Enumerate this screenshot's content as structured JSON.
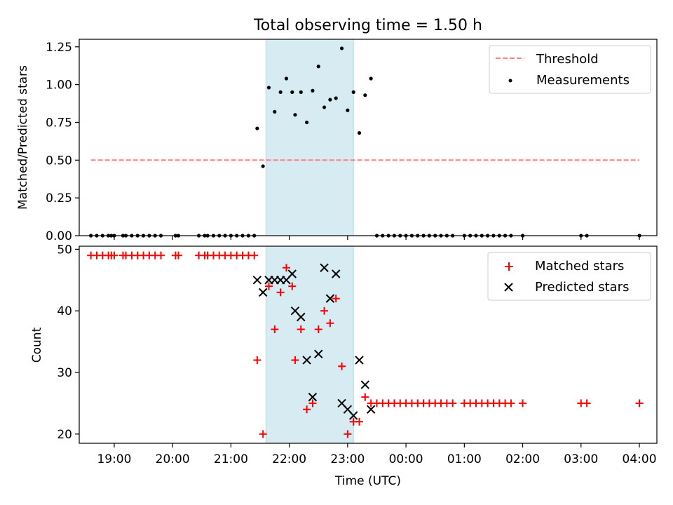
{
  "chart_data": [
    {
      "type": "scatter",
      "title": "Total observing time = 1.50 h",
      "xlabel": "",
      "ylabel": "Matched/Predicted stars",
      "ylim": [
        0,
        1.3
      ],
      "yticks": [
        0.0,
        0.25,
        0.5,
        0.75,
        1.0,
        1.25
      ],
      "ytick_labels": [
        "0.00",
        "0.25",
        "0.50",
        "0.75",
        "1.00",
        "1.25"
      ],
      "grid": false,
      "legend_position": "upper-right",
      "highlight_span": {
        "start": "21:36",
        "end": "23:06",
        "color": "#add8e6"
      },
      "series": [
        {
          "name": "Threshold",
          "kind": "dashed-line",
          "color": "#ff7f7f",
          "points": [
            [
              "18:36",
              0.5
            ],
            [
              "04:00",
              0.5
            ]
          ]
        },
        {
          "name": "Measurements",
          "kind": "dot",
          "color": "#000000",
          "points": [
            [
              "18:36",
              0
            ],
            [
              "18:42",
              0
            ],
            [
              "18:48",
              0
            ],
            [
              "18:54",
              0
            ],
            [
              "18:57",
              0
            ],
            [
              "19:00",
              0
            ],
            [
              "19:09",
              0
            ],
            [
              "19:12",
              0
            ],
            [
              "19:18",
              0
            ],
            [
              "19:24",
              0
            ],
            [
              "19:30",
              0
            ],
            [
              "19:36",
              0
            ],
            [
              "19:42",
              0
            ],
            [
              "19:48",
              0
            ],
            [
              "20:03",
              0
            ],
            [
              "20:06",
              0
            ],
            [
              "20:27",
              0
            ],
            [
              "20:33",
              0
            ],
            [
              "20:36",
              0
            ],
            [
              "20:42",
              0
            ],
            [
              "20:48",
              0
            ],
            [
              "20:54",
              0
            ],
            [
              "21:00",
              0
            ],
            [
              "21:06",
              0
            ],
            [
              "21:12",
              0
            ],
            [
              "21:18",
              0
            ],
            [
              "21:24",
              0
            ],
            [
              "21:27",
              0.71
            ],
            [
              "21:33",
              0.46
            ],
            [
              "21:39",
              0.98
            ],
            [
              "21:45",
              0.82
            ],
            [
              "21:51",
              0.95
            ],
            [
              "21:57",
              1.04
            ],
            [
              "22:03",
              0.95
            ],
            [
              "22:06",
              0.8
            ],
            [
              "22:12",
              0.95
            ],
            [
              "22:18",
              0.75
            ],
            [
              "22:24",
              0.96
            ],
            [
              "22:30",
              1.12
            ],
            [
              "22:36",
              0.85
            ],
            [
              "22:42",
              0.9
            ],
            [
              "22:48",
              0.91
            ],
            [
              "22:54",
              1.24
            ],
            [
              "23:00",
              0.83
            ],
            [
              "23:06",
              0.95
            ],
            [
              "23:12",
              0.68
            ],
            [
              "23:18",
              0.93
            ],
            [
              "23:24",
              1.04
            ],
            [
              "23:30",
              0
            ],
            [
              "23:36",
              0
            ],
            [
              "23:42",
              0
            ],
            [
              "23:48",
              0
            ],
            [
              "23:54",
              0
            ],
            [
              "00:00",
              0
            ],
            [
              "00:06",
              0
            ],
            [
              "00:12",
              0
            ],
            [
              "00:18",
              0
            ],
            [
              "00:24",
              0
            ],
            [
              "00:30",
              0
            ],
            [
              "00:36",
              0
            ],
            [
              "00:42",
              0
            ],
            [
              "00:48",
              0
            ],
            [
              "01:00",
              0
            ],
            [
              "01:06",
              0
            ],
            [
              "01:12",
              0
            ],
            [
              "01:18",
              0
            ],
            [
              "01:24",
              0
            ],
            [
              "01:30",
              0
            ],
            [
              "01:36",
              0
            ],
            [
              "01:42",
              0
            ],
            [
              "01:48",
              0
            ],
            [
              "02:00",
              0
            ],
            [
              "03:00",
              0
            ],
            [
              "03:06",
              0
            ],
            [
              "04:00",
              0
            ]
          ]
        }
      ]
    },
    {
      "type": "scatter",
      "title": "",
      "xlabel": "Time (UTC)",
      "ylabel": "Count",
      "ylim": [
        18.5,
        50.5
      ],
      "yticks": [
        20,
        30,
        40,
        50
      ],
      "ytick_labels": [
        "20",
        "30",
        "40",
        "50"
      ],
      "xticks": [
        "19:00",
        "20:00",
        "21:00",
        "22:00",
        "23:00",
        "00:00",
        "01:00",
        "02:00",
        "03:00",
        "04:00"
      ],
      "xlim": [
        "18:24",
        "04:18"
      ],
      "grid": false,
      "legend_position": "upper-right",
      "highlight_span": {
        "start": "21:36",
        "end": "23:06",
        "color": "#add8e6"
      },
      "series": [
        {
          "name": "Matched stars",
          "kind": "plus",
          "color": "#ff0000",
          "points": [
            [
              "18:36",
              49
            ],
            [
              "18:42",
              49
            ],
            [
              "18:48",
              49
            ],
            [
              "18:54",
              49
            ],
            [
              "18:57",
              49
            ],
            [
              "19:00",
              49
            ],
            [
              "19:09",
              49
            ],
            [
              "19:12",
              49
            ],
            [
              "19:18",
              49
            ],
            [
              "19:24",
              49
            ],
            [
              "19:30",
              49
            ],
            [
              "19:36",
              49
            ],
            [
              "19:42",
              49
            ],
            [
              "19:48",
              49
            ],
            [
              "20:03",
              49
            ],
            [
              "20:06",
              49
            ],
            [
              "20:27",
              49
            ],
            [
              "20:33",
              49
            ],
            [
              "20:36",
              49
            ],
            [
              "20:42",
              49
            ],
            [
              "20:48",
              49
            ],
            [
              "20:54",
              49
            ],
            [
              "21:00",
              49
            ],
            [
              "21:06",
              49
            ],
            [
              "21:12",
              49
            ],
            [
              "21:18",
              49
            ],
            [
              "21:24",
              49
            ],
            [
              "21:27",
              32
            ],
            [
              "21:33",
              20
            ],
            [
              "21:39",
              44
            ],
            [
              "21:45",
              37
            ],
            [
              "21:51",
              43
            ],
            [
              "21:57",
              47
            ],
            [
              "22:03",
              44
            ],
            [
              "22:06",
              32
            ],
            [
              "22:12",
              37
            ],
            [
              "22:18",
              24
            ],
            [
              "22:24",
              25
            ],
            [
              "22:30",
              37
            ],
            [
              "22:36",
              40
            ],
            [
              "22:42",
              38
            ],
            [
              "22:48",
              42
            ],
            [
              "22:54",
              31
            ],
            [
              "23:00",
              20
            ],
            [
              "23:06",
              22
            ],
            [
              "23:12",
              22
            ],
            [
              "23:18",
              26
            ],
            [
              "23:24",
              25
            ],
            [
              "23:30",
              25
            ],
            [
              "23:36",
              25
            ],
            [
              "23:42",
              25
            ],
            [
              "23:48",
              25
            ],
            [
              "23:54",
              25
            ],
            [
              "00:00",
              25
            ],
            [
              "00:06",
              25
            ],
            [
              "00:12",
              25
            ],
            [
              "00:18",
              25
            ],
            [
              "00:24",
              25
            ],
            [
              "00:30",
              25
            ],
            [
              "00:36",
              25
            ],
            [
              "00:42",
              25
            ],
            [
              "00:48",
              25
            ],
            [
              "01:00",
              25
            ],
            [
              "01:06",
              25
            ],
            [
              "01:12",
              25
            ],
            [
              "01:18",
              25
            ],
            [
              "01:24",
              25
            ],
            [
              "01:30",
              25
            ],
            [
              "01:36",
              25
            ],
            [
              "01:42",
              25
            ],
            [
              "01:48",
              25
            ],
            [
              "02:00",
              25
            ],
            [
              "03:00",
              25
            ],
            [
              "03:06",
              25
            ],
            [
              "04:00",
              25
            ]
          ]
        },
        {
          "name": "Predicted stars",
          "kind": "cross",
          "color": "#000000",
          "points": [
            [
              "21:27",
              45
            ],
            [
              "21:33",
              43
            ],
            [
              "21:39",
              45
            ],
            [
              "21:45",
              45
            ],
            [
              "21:51",
              45
            ],
            [
              "21:57",
              45
            ],
            [
              "22:03",
              46
            ],
            [
              "22:06",
              40
            ],
            [
              "22:12",
              39
            ],
            [
              "22:18",
              32
            ],
            [
              "22:24",
              26
            ],
            [
              "22:30",
              33
            ],
            [
              "22:36",
              47
            ],
            [
              "22:42",
              42
            ],
            [
              "22:48",
              46
            ],
            [
              "22:54",
              25
            ],
            [
              "23:00",
              24
            ],
            [
              "23:06",
              23
            ],
            [
              "23:12",
              32
            ],
            [
              "23:18",
              28
            ],
            [
              "23:24",
              24
            ]
          ]
        }
      ]
    }
  ]
}
